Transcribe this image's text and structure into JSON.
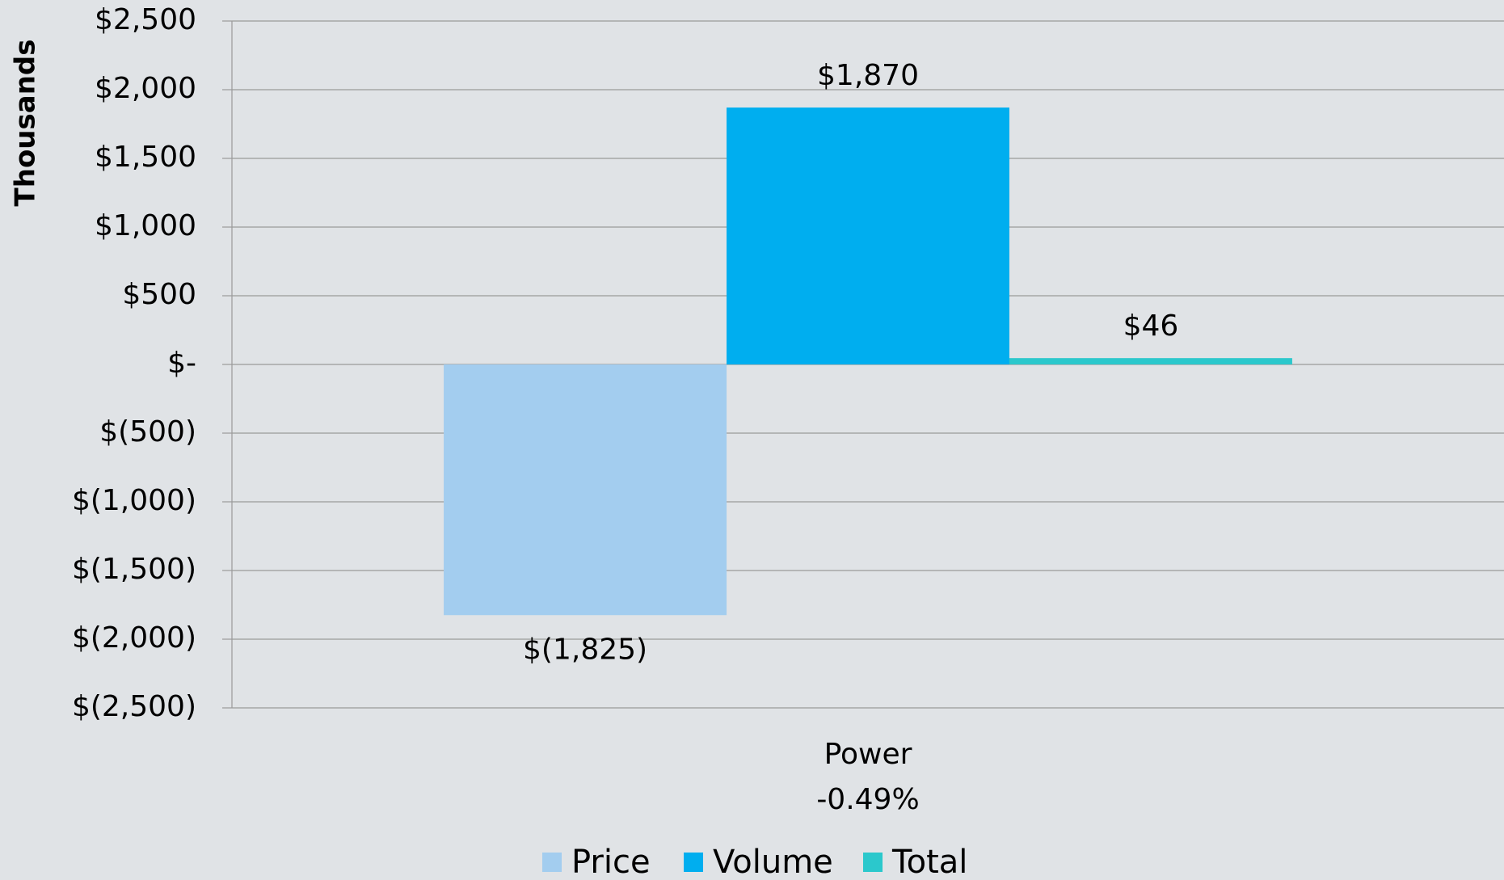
{
  "chart_data": {
    "type": "bar",
    "y_axis_label": "Thousands",
    "categories": [
      "Power\n-0.49%"
    ],
    "series": [
      {
        "name": "Price",
        "color": "#a3cdef",
        "values": [
          -1825
        ],
        "value_labels": [
          "$(1,825)"
        ]
      },
      {
        "name": "Volume",
        "color": "#00aeef",
        "values": [
          1870
        ],
        "value_labels": [
          "$1,870"
        ]
      },
      {
        "name": "Total",
        "color": "#2bc8cc",
        "values": [
          46
        ],
        "value_labels": [
          "$46"
        ]
      }
    ],
    "ylim": [
      -2500,
      2500
    ],
    "yticks": [
      {
        "value": -2500,
        "label": "$(2,500)"
      },
      {
        "value": -2000,
        "label": "$(2,000)"
      },
      {
        "value": -1500,
        "label": "$(1,500)"
      },
      {
        "value": -1000,
        "label": "$(1,000)"
      },
      {
        "value": -500,
        "label": "$(500)"
      },
      {
        "value": 0,
        "label": "$-"
      },
      {
        "value": 500,
        "label": "$500"
      },
      {
        "value": 1000,
        "label": "$1,000"
      },
      {
        "value": 1500,
        "label": "$1,500"
      },
      {
        "value": 2000,
        "label": "$2,000"
      },
      {
        "value": 2500,
        "label": "$2,500"
      }
    ],
    "grid": true,
    "legend": "bottom"
  }
}
